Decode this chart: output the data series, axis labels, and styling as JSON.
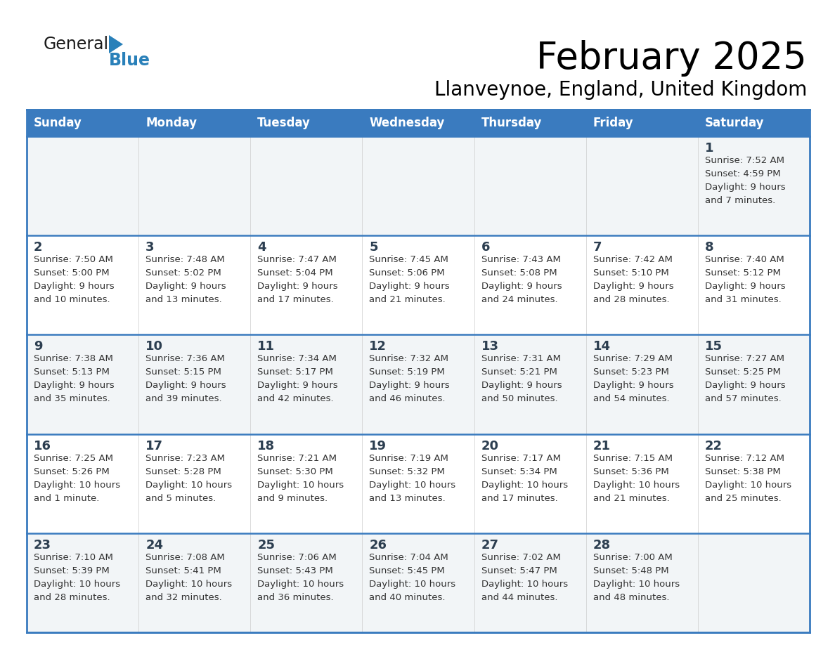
{
  "title": "February 2025",
  "subtitle": "Llanveynoe, England, United Kingdom",
  "days_of_week": [
    "Sunday",
    "Monday",
    "Tuesday",
    "Wednesday",
    "Thursday",
    "Friday",
    "Saturday"
  ],
  "header_bg": "#3a7bbf",
  "header_text": "#ffffff",
  "cell_bg": "#f2f5f7",
  "cell_bg_white": "#ffffff",
  "row_separator_color": "#3a7bbf",
  "col_separator_color": "#cccccc",
  "text_color": "#333333",
  "day_num_color": "#2c3e50",
  "logo_general_color": "#1a1a1a",
  "logo_blue_color": "#2980b9",
  "calendar_data": [
    [
      null,
      null,
      null,
      null,
      null,
      null,
      {
        "day": 1,
        "sunrise": "7:52 AM",
        "sunset": "4:59 PM",
        "daylight": "9 hours and 7 minutes."
      }
    ],
    [
      {
        "day": 2,
        "sunrise": "7:50 AM",
        "sunset": "5:00 PM",
        "daylight": "9 hours and 10 minutes."
      },
      {
        "day": 3,
        "sunrise": "7:48 AM",
        "sunset": "5:02 PM",
        "daylight": "9 hours and 13 minutes."
      },
      {
        "day": 4,
        "sunrise": "7:47 AM",
        "sunset": "5:04 PM",
        "daylight": "9 hours and 17 minutes."
      },
      {
        "day": 5,
        "sunrise": "7:45 AM",
        "sunset": "5:06 PM",
        "daylight": "9 hours and 21 minutes."
      },
      {
        "day": 6,
        "sunrise": "7:43 AM",
        "sunset": "5:08 PM",
        "daylight": "9 hours and 24 minutes."
      },
      {
        "day": 7,
        "sunrise": "7:42 AM",
        "sunset": "5:10 PM",
        "daylight": "9 hours and 28 minutes."
      },
      {
        "day": 8,
        "sunrise": "7:40 AM",
        "sunset": "5:12 PM",
        "daylight": "9 hours and 31 minutes."
      }
    ],
    [
      {
        "day": 9,
        "sunrise": "7:38 AM",
        "sunset": "5:13 PM",
        "daylight": "9 hours and 35 minutes."
      },
      {
        "day": 10,
        "sunrise": "7:36 AM",
        "sunset": "5:15 PM",
        "daylight": "9 hours and 39 minutes."
      },
      {
        "day": 11,
        "sunrise": "7:34 AM",
        "sunset": "5:17 PM",
        "daylight": "9 hours and 42 minutes."
      },
      {
        "day": 12,
        "sunrise": "7:32 AM",
        "sunset": "5:19 PM",
        "daylight": "9 hours and 46 minutes."
      },
      {
        "day": 13,
        "sunrise": "7:31 AM",
        "sunset": "5:21 PM",
        "daylight": "9 hours and 50 minutes."
      },
      {
        "day": 14,
        "sunrise": "7:29 AM",
        "sunset": "5:23 PM",
        "daylight": "9 hours and 54 minutes."
      },
      {
        "day": 15,
        "sunrise": "7:27 AM",
        "sunset": "5:25 PM",
        "daylight": "9 hours and 57 minutes."
      }
    ],
    [
      {
        "day": 16,
        "sunrise": "7:25 AM",
        "sunset": "5:26 PM",
        "daylight": "10 hours and 1 minute."
      },
      {
        "day": 17,
        "sunrise": "7:23 AM",
        "sunset": "5:28 PM",
        "daylight": "10 hours and 5 minutes."
      },
      {
        "day": 18,
        "sunrise": "7:21 AM",
        "sunset": "5:30 PM",
        "daylight": "10 hours and 9 minutes."
      },
      {
        "day": 19,
        "sunrise": "7:19 AM",
        "sunset": "5:32 PM",
        "daylight": "10 hours and 13 minutes."
      },
      {
        "day": 20,
        "sunrise": "7:17 AM",
        "sunset": "5:34 PM",
        "daylight": "10 hours and 17 minutes."
      },
      {
        "day": 21,
        "sunrise": "7:15 AM",
        "sunset": "5:36 PM",
        "daylight": "10 hours and 21 minutes."
      },
      {
        "day": 22,
        "sunrise": "7:12 AM",
        "sunset": "5:38 PM",
        "daylight": "10 hours and 25 minutes."
      }
    ],
    [
      {
        "day": 23,
        "sunrise": "7:10 AM",
        "sunset": "5:39 PM",
        "daylight": "10 hours and 28 minutes."
      },
      {
        "day": 24,
        "sunrise": "7:08 AM",
        "sunset": "5:41 PM",
        "daylight": "10 hours and 32 minutes."
      },
      {
        "day": 25,
        "sunrise": "7:06 AM",
        "sunset": "5:43 PM",
        "daylight": "10 hours and 36 minutes."
      },
      {
        "day": 26,
        "sunrise": "7:04 AM",
        "sunset": "5:45 PM",
        "daylight": "10 hours and 40 minutes."
      },
      {
        "day": 27,
        "sunrise": "7:02 AM",
        "sunset": "5:47 PM",
        "daylight": "10 hours and 44 minutes."
      },
      {
        "day": 28,
        "sunrise": "7:00 AM",
        "sunset": "5:48 PM",
        "daylight": "10 hours and 48 minutes."
      },
      null
    ]
  ]
}
